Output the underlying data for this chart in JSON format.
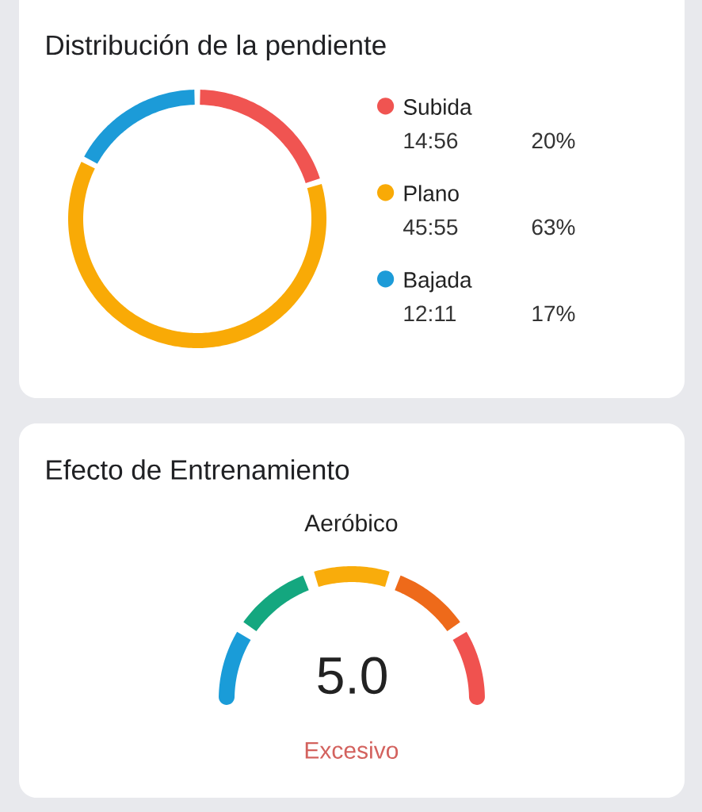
{
  "chart_data": [
    {
      "type": "donut",
      "title": "Distribución de la pendiente",
      "categories": [
        "Subida",
        "Plano",
        "Bajada"
      ],
      "values": [
        20,
        63,
        17
      ],
      "colors": [
        "#f05451",
        "#f9aa06",
        "#1c9bd8"
      ],
      "annotations": [
        "14:56",
        "20%",
        "45:55",
        "63%",
        "12:11",
        "17%"
      ],
      "legend": "right"
    },
    {
      "type": "donut",
      "title": "Efecto de Entrenamiento",
      "subtitle": "Aeróbico",
      "categories": [
        null,
        null,
        null,
        null,
        null
      ],
      "values": [
        20,
        20,
        20,
        20,
        20
      ],
      "colors": [
        "#1a9cd8",
        "#14a77f",
        "#f9ac0b",
        "#ee6a1a",
        "#f0524f"
      ],
      "annotations": [
        "5.0",
        "Excesivo"
      ]
    }
  ]
}
